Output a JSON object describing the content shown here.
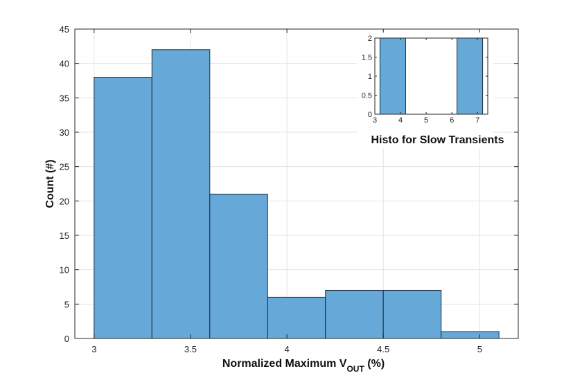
{
  "chart_data": [
    {
      "type": "bar",
      "bins": [
        {
          "x0": 3.0,
          "x1": 3.3,
          "count": 38
        },
        {
          "x0": 3.3,
          "x1": 3.6,
          "count": 42
        },
        {
          "x0": 3.6,
          "x1": 3.9,
          "count": 21
        },
        {
          "x0": 3.9,
          "x1": 4.2,
          "count": 6
        },
        {
          "x0": 4.2,
          "x1": 4.5,
          "count": 7
        },
        {
          "x0": 4.5,
          "x1": 4.8,
          "count": 7
        },
        {
          "x0": 4.8,
          "x1": 5.1,
          "count": 1
        }
      ],
      "xlim": [
        2.9,
        5.2
      ],
      "ylim": [
        0,
        45
      ],
      "xticks": [
        3,
        3.5,
        4,
        4.5,
        5
      ],
      "xtick_labels": [
        "3",
        "3.5",
        "4",
        "4.5",
        "5"
      ],
      "yticks": [
        0,
        5,
        10,
        15,
        20,
        25,
        30,
        35,
        40,
        45
      ],
      "ytick_labels": [
        "0",
        "5",
        "10",
        "15",
        "20",
        "25",
        "30",
        "35",
        "40",
        "45"
      ],
      "xlabel": "Normalized Maximum V",
      "xlabel_subscript": "OUT",
      "xlabel_suffix": " (%)",
      "ylabel": "Count (#)",
      "grid": true,
      "bar_color": "#66a9d9",
      "edge_color": "#1b2a3a"
    },
    {
      "type": "bar",
      "title": "Histo for Slow Transients",
      "bins": [
        {
          "x0": 3.2,
          "x1": 4.2,
          "count": 2
        },
        {
          "x0": 4.2,
          "x1": 5.2,
          "count": 0
        },
        {
          "x0": 5.2,
          "x1": 6.2,
          "count": 0
        },
        {
          "x0": 6.2,
          "x1": 7.2,
          "count": 2
        }
      ],
      "xlim": [
        3.0,
        7.4
      ],
      "ylim": [
        0,
        2
      ],
      "xticks": [
        3,
        4,
        5,
        6,
        7
      ],
      "xtick_labels": [
        "3",
        "4",
        "5",
        "6",
        "7"
      ],
      "yticks": [
        0,
        0.5,
        1,
        1.5,
        2
      ],
      "ytick_labels": [
        "0",
        "0.5",
        "1",
        "1.5",
        "2"
      ],
      "grid": false,
      "bar_color": "#66a9d9",
      "edge_color": "#1b2a3a"
    }
  ]
}
